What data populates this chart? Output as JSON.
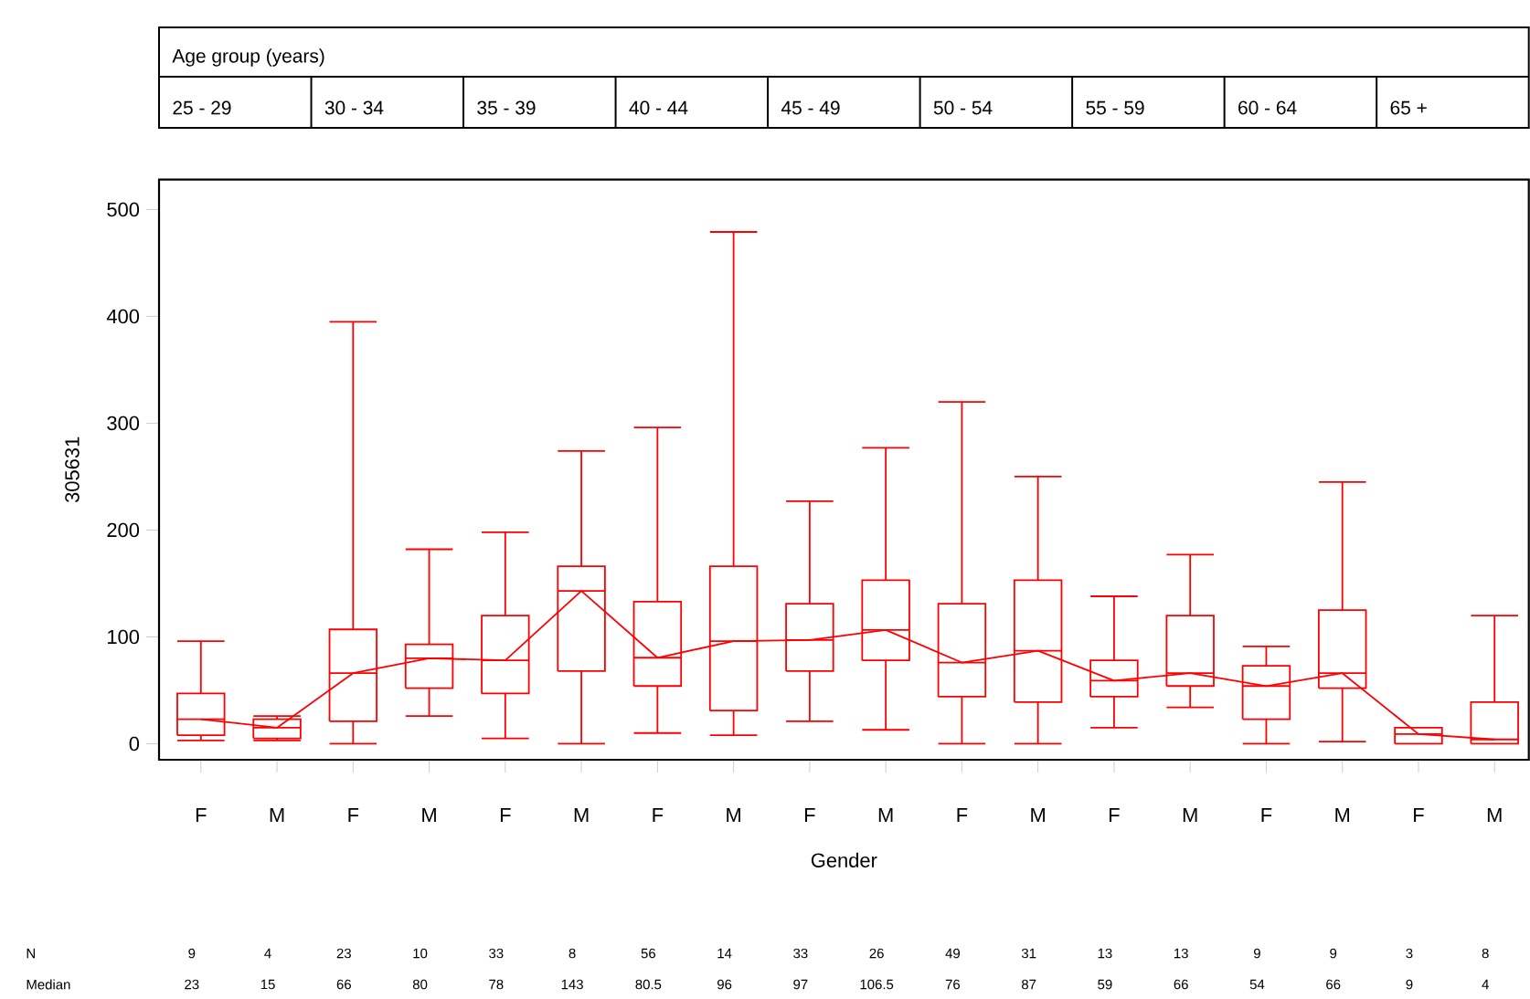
{
  "chart_data": {
    "type": "box",
    "xlabel": "Gender",
    "ylabel": "305631",
    "categories": [
      "F",
      "M",
      "F",
      "M",
      "F",
      "M",
      "F",
      "M",
      "F",
      "M",
      "F",
      "M",
      "F",
      "M",
      "F",
      "M",
      "F",
      "M"
    ],
    "ylim": [
      -15,
      528
    ],
    "yticks": [
      0,
      100,
      200,
      300,
      400,
      500
    ],
    "series": [
      {
        "color": "#ff0000",
        "boxes": [
          {
            "low": 3,
            "q1": 8,
            "median": 23,
            "q3": 47,
            "high": 96
          },
          {
            "low": 3,
            "q1": 5,
            "median": 15,
            "q3": 23,
            "high": 26
          },
          {
            "low": 0,
            "q1": 21,
            "median": 66,
            "q3": 107,
            "high": 395
          },
          {
            "low": 26,
            "q1": 52,
            "median": 80,
            "q3": 93,
            "high": 182
          },
          {
            "low": 5,
            "q1": 47,
            "median": 78,
            "q3": 120,
            "high": 198
          },
          {
            "low": 0,
            "q1": 68,
            "median": 143,
            "q3": 166,
            "high": 274
          },
          {
            "low": 10,
            "q1": 54,
            "median": 80.5,
            "q3": 133,
            "high": 296
          },
          {
            "low": 8,
            "q1": 31,
            "median": 96,
            "q3": 166,
            "high": 479
          },
          {
            "low": 21,
            "q1": 68,
            "median": 97,
            "q3": 131,
            "high": 227
          },
          {
            "low": 13,
            "q1": 78,
            "median": 106.5,
            "q3": 153,
            "high": 277
          },
          {
            "low": 0,
            "q1": 44,
            "median": 76,
            "q3": 131,
            "high": 320
          },
          {
            "low": 0,
            "q1": 39,
            "median": 87,
            "q3": 153,
            "high": 250
          },
          {
            "low": 15,
            "q1": 44,
            "median": 59,
            "q3": 78,
            "high": 138
          },
          {
            "low": 34,
            "q1": 54,
            "median": 66,
            "q3": 120,
            "high": 177
          },
          {
            "low": 0,
            "q1": 23,
            "median": 54,
            "q3": 73,
            "high": 91
          },
          {
            "low": 2,
            "q1": 52,
            "median": 66,
            "q3": 125,
            "high": 245
          },
          {
            "low": 0,
            "q1": 0,
            "median": 9,
            "q3": 15,
            "high": 15
          },
          {
            "low": 0,
            "q1": 0,
            "median": 4,
            "q3": 39,
            "high": 120
          }
        ]
      },
      {
        "type": "line",
        "color": "#ff0000",
        "values": [
          23,
          15,
          66,
          80,
          78,
          143,
          80.5,
          96,
          97,
          106.5,
          76,
          87,
          59,
          66,
          54,
          66,
          9,
          4
        ]
      }
    ],
    "annotations": [
      "Age group (years)",
      "25 - 29",
      "30 - 34",
      "35 - 39",
      "40 - 44",
      "45 - 49",
      "50 - 54",
      "55 - 59",
      "60 - 64",
      "65 +",
      "N",
      "9",
      "4",
      "23",
      "10",
      "33",
      "8",
      "56",
      "14",
      "33",
      "26",
      "49",
      "31",
      "13",
      "13",
      "9",
      "9",
      "3",
      "8",
      "Median",
      "23",
      "15",
      "66",
      "80",
      "78",
      "143",
      "80.5",
      "96",
      "97",
      "106.5",
      "76",
      "87",
      "59",
      "66",
      "54",
      "66",
      "9",
      "4"
    ]
  }
}
